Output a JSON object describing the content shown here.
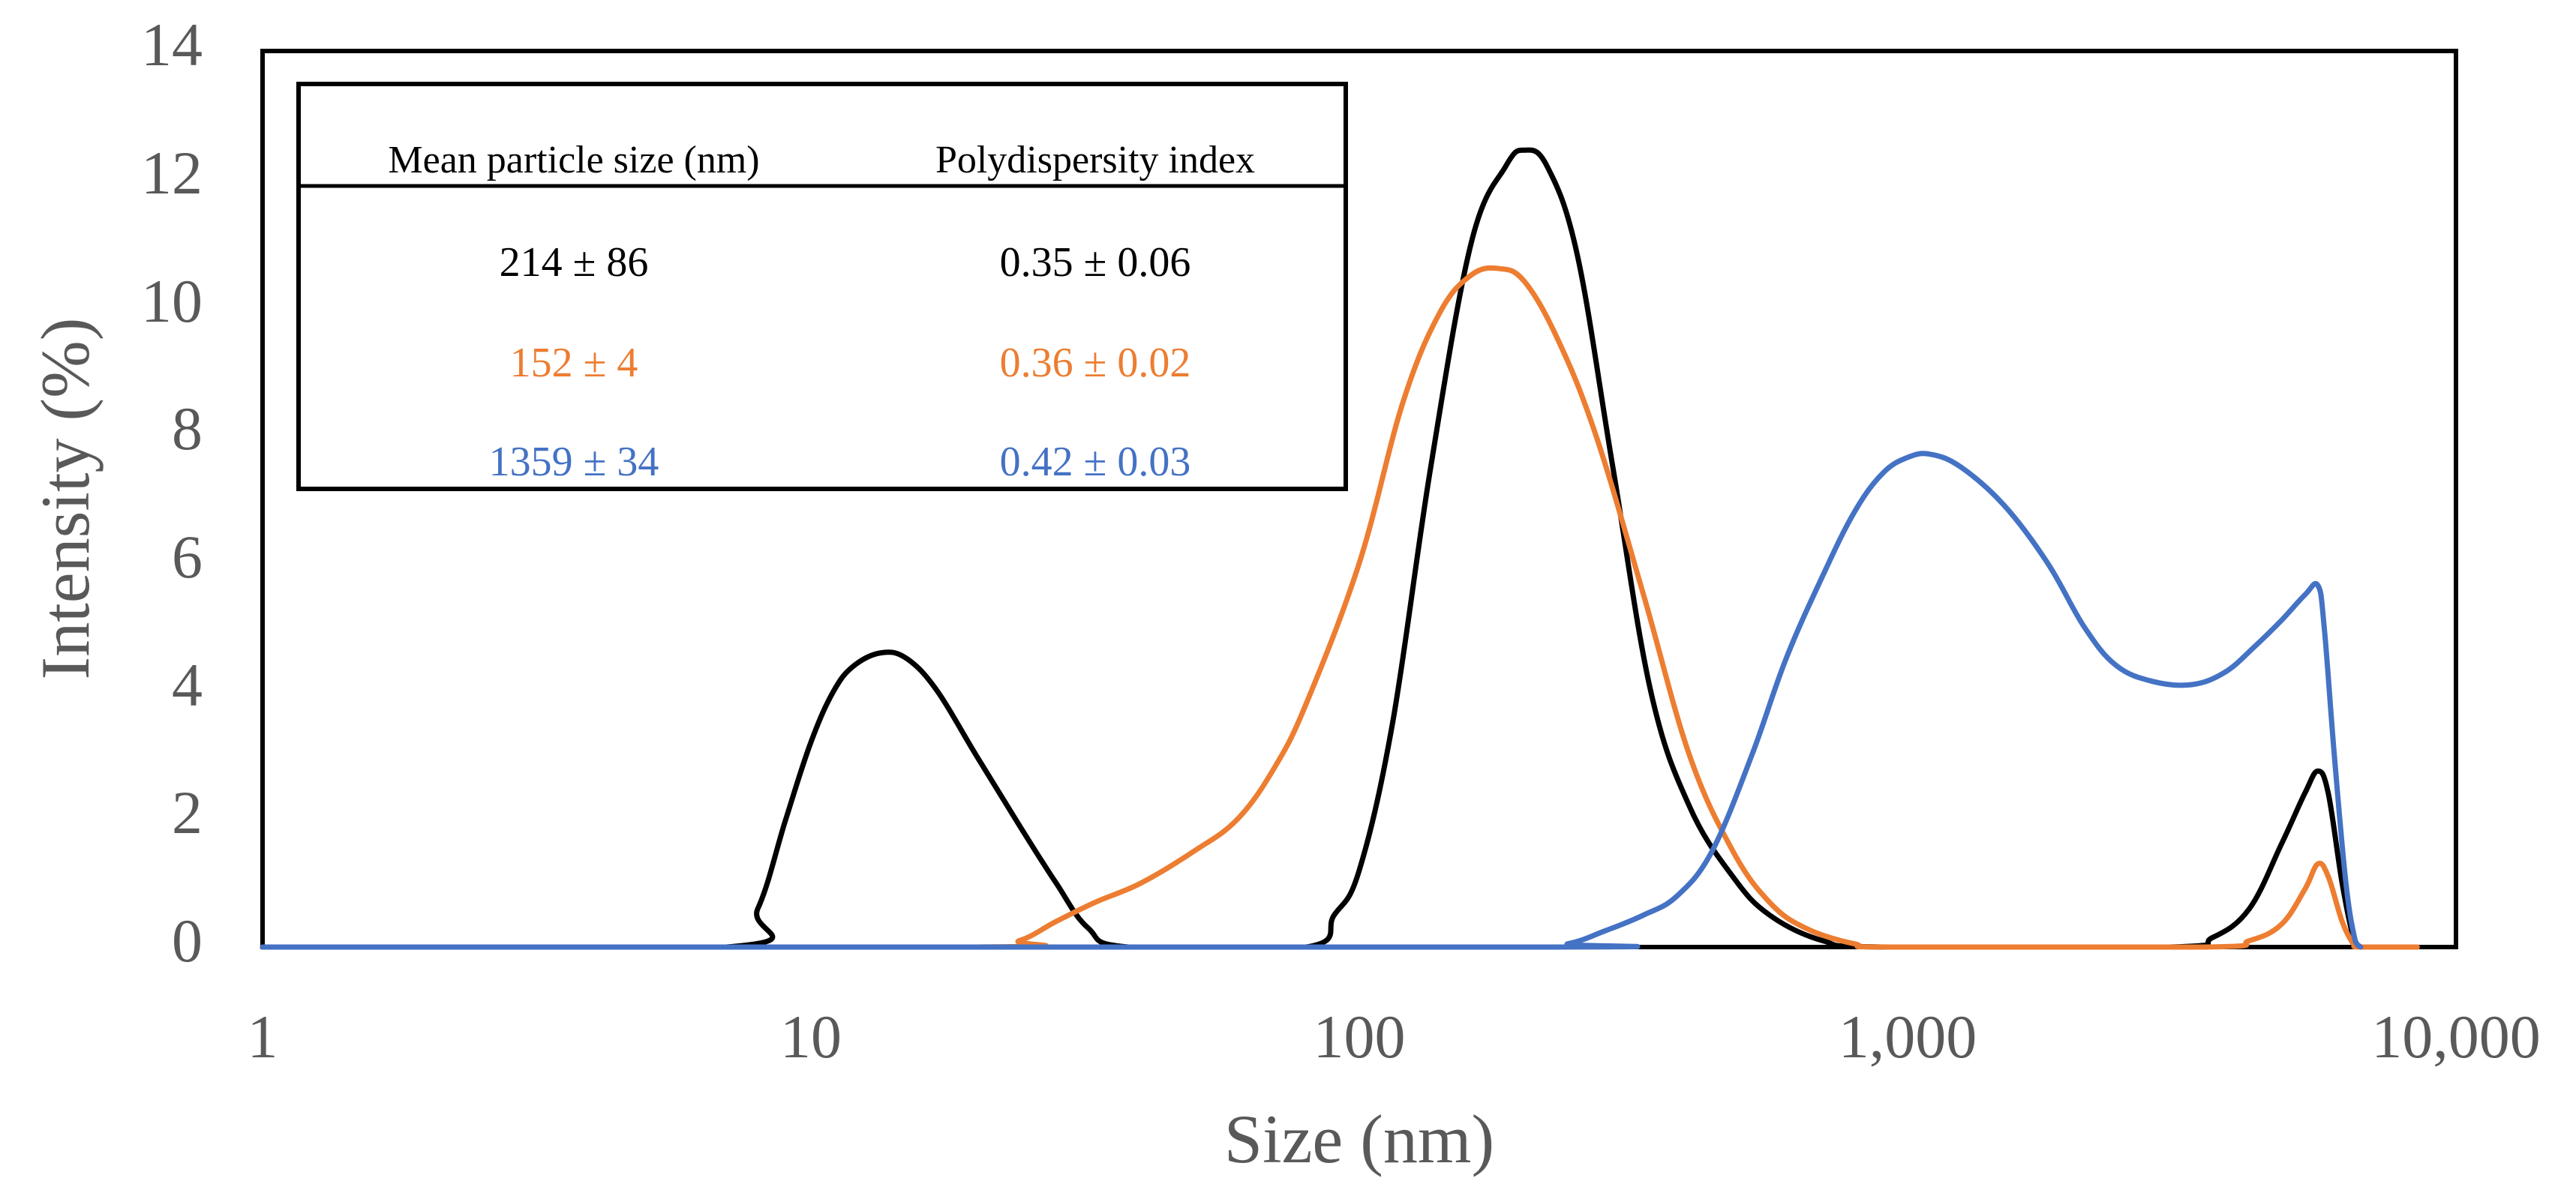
{
  "chart_data": {
    "type": "line",
    "xscale": "log",
    "xlim": [
      1,
      10000
    ],
    "ylim": [
      0,
      14
    ],
    "xlabel": "Size (nm)",
    "ylabel": "Intensity (%)",
    "x_ticks": [
      1,
      10,
      100,
      1000,
      10000
    ],
    "x_tick_labels": [
      "1",
      "10",
      "100",
      "1,000",
      "10,000"
    ],
    "y_ticks": [
      0,
      2,
      4,
      6,
      8,
      10,
      12,
      14
    ],
    "y_tick_labels": [
      "0",
      "2",
      "4",
      "6",
      "8",
      "10",
      "12",
      "14"
    ],
    "grid": false,
    "legend": "none",
    "series": [
      {
        "name": "black",
        "color": "#000000",
        "points": [
          [
            1,
            0
          ],
          [
            7,
            0
          ],
          [
            8,
            0.6
          ],
          [
            9,
            2.0
          ],
          [
            10,
            3.2
          ],
          [
            11,
            4.0
          ],
          [
            12,
            4.4
          ],
          [
            13.5,
            4.6
          ],
          [
            15,
            4.5
          ],
          [
            17,
            4.0
          ],
          [
            20,
            3.0
          ],
          [
            24,
            1.9
          ],
          [
            28,
            1.0
          ],
          [
            32,
            0.3
          ],
          [
            38,
            0
          ],
          [
            80,
            0
          ],
          [
            90,
            0.5
          ],
          [
            100,
            1.2
          ],
          [
            115,
            3.5
          ],
          [
            135,
            7.5
          ],
          [
            160,
            11.0
          ],
          [
            185,
            12.2
          ],
          [
            200,
            12.45
          ],
          [
            220,
            12.2
          ],
          [
            250,
            10.8
          ],
          [
            290,
            7.5
          ],
          [
            340,
            4.0
          ],
          [
            400,
            2.2
          ],
          [
            480,
            1.1
          ],
          [
            560,
            0.5
          ],
          [
            700,
            0.1
          ],
          [
            900,
            0
          ],
          [
            3000,
            0
          ],
          [
            3600,
            0.15
          ],
          [
            4200,
            0.6
          ],
          [
            4800,
            1.6
          ],
          [
            5300,
            2.4
          ],
          [
            5600,
            2.75
          ],
          [
            5850,
            2.4
          ],
          [
            6200,
            1.0
          ],
          [
            6500,
            0.15
          ],
          [
            6700,
            0
          ]
        ]
      },
      {
        "name": "orange",
        "color": "#ED7D31",
        "points": [
          [
            1,
            0
          ],
          [
            20,
            0
          ],
          [
            24,
            0.1
          ],
          [
            28,
            0.4
          ],
          [
            33,
            0.7
          ],
          [
            40,
            1.0
          ],
          [
            50,
            1.5
          ],
          [
            60,
            2.0
          ],
          [
            70,
            2.8
          ],
          [
            80,
            3.8
          ],
          [
            100,
            6.0
          ],
          [
            120,
            8.5
          ],
          [
            140,
            9.9
          ],
          [
            160,
            10.5
          ],
          [
            180,
            10.6
          ],
          [
            200,
            10.4
          ],
          [
            230,
            9.5
          ],
          [
            270,
            8.0
          ],
          [
            330,
            5.5
          ],
          [
            400,
            3.0
          ],
          [
            480,
            1.5
          ],
          [
            560,
            0.7
          ],
          [
            650,
            0.3
          ],
          [
            800,
            0.05
          ],
          [
            950,
            0
          ],
          [
            3500,
            0
          ],
          [
            4200,
            0.1
          ],
          [
            4800,
            0.35
          ],
          [
            5300,
            0.9
          ],
          [
            5600,
            1.3
          ],
          [
            5850,
            1.1
          ],
          [
            6200,
            0.4
          ],
          [
            6500,
            0.05
          ],
          [
            6700,
            0
          ],
          [
            8500,
            0
          ]
        ]
      },
      {
        "name": "blue",
        "color": "#4472C4",
        "points": [
          [
            1,
            0
          ],
          [
            200,
            0
          ],
          [
            240,
            0.05
          ],
          [
            280,
            0.25
          ],
          [
            330,
            0.5
          ],
          [
            380,
            0.8
          ],
          [
            440,
            1.5
          ],
          [
            520,
            3.0
          ],
          [
            600,
            4.5
          ],
          [
            700,
            5.8
          ],
          [
            800,
            6.8
          ],
          [
            900,
            7.4
          ],
          [
            1000,
            7.65
          ],
          [
            1100,
            7.7
          ],
          [
            1250,
            7.5
          ],
          [
            1500,
            6.9
          ],
          [
            1800,
            6.0
          ],
          [
            2100,
            5.0
          ],
          [
            2400,
            4.4
          ],
          [
            2800,
            4.15
          ],
          [
            3300,
            4.1
          ],
          [
            3800,
            4.3
          ],
          [
            4300,
            4.7
          ],
          [
            4800,
            5.1
          ],
          [
            5300,
            5.5
          ],
          [
            5600,
            5.65
          ],
          [
            5750,
            5.0
          ],
          [
            6000,
            3.0
          ],
          [
            6300,
            1.0
          ],
          [
            6550,
            0.1
          ],
          [
            6700,
            0
          ]
        ]
      }
    ],
    "table": {
      "headers": [
        "Mean particle size (nm)",
        "Polydispersity index"
      ],
      "rows": [
        {
          "size": "214 ± 86",
          "pdi": "0.35 ± 0.06",
          "color": "#000000"
        },
        {
          "size": "152 ± 4",
          "pdi": "0.36 ± 0.02",
          "color": "#ED7D31"
        },
        {
          "size": "1359 ± 34",
          "pdi": "0.42 ± 0.03",
          "color": "#4472C4"
        }
      ]
    }
  }
}
